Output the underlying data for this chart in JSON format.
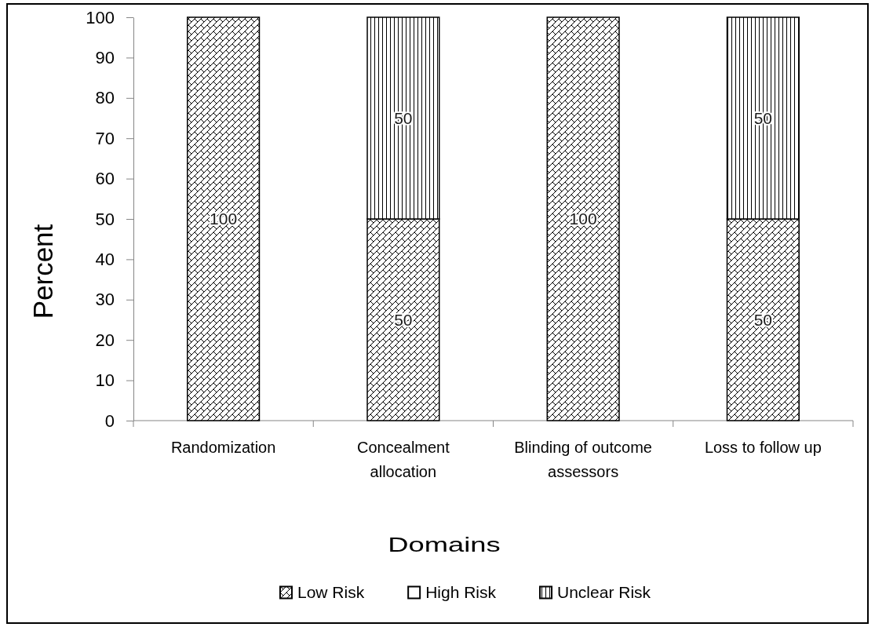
{
  "chart_data": {
    "type": "bar",
    "xlabel": "Domains",
    "ylabel": "Percent",
    "categories": [
      "Randomization",
      "Concealment allocation",
      "Blinding of outcome assessors",
      "Loss to follow up"
    ],
    "series": [
      {
        "name": "Low Risk",
        "color": "#000000",
        "values": [
          100,
          50,
          100,
          50
        ],
        "value_labels": [
          "100",
          "50",
          "100",
          "50"
        ]
      },
      {
        "name": "High Risk",
        "color": "#ffffff",
        "values": [
          0,
          0,
          0,
          0
        ]
      },
      {
        "name": "Unclear Risk",
        "color": "#000000",
        "values": [
          0,
          50,
          0,
          50
        ],
        "value_labels": [
          null,
          "50",
          null,
          "50"
        ]
      }
    ],
    "stacked": true,
    "ylim": [
      0,
      100
    ],
    "yticks": [
      0,
      10,
      20,
      30,
      40,
      50,
      60,
      70,
      80,
      90,
      100
    ],
    "legend": "bottom"
  }
}
